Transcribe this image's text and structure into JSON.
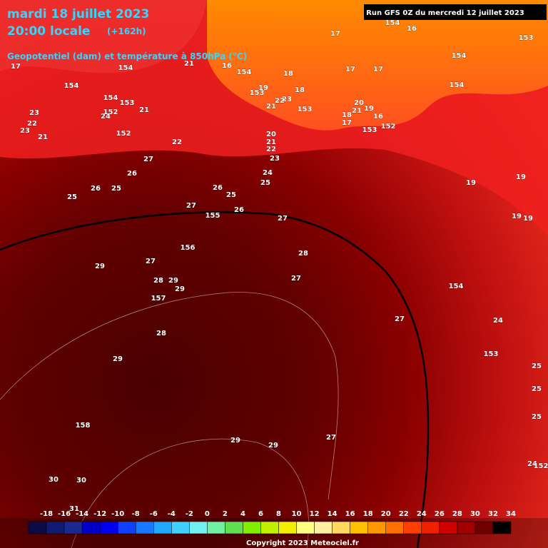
{
  "header": {
    "date": "mardi 18 juillet 2023",
    "time": "20:00 locale",
    "lead": "(+162h)",
    "field": "Geopotentiel (dam) et température à 850hPa (°C)",
    "run": "Run GFS 0Z du mercredi 12 juillet 2023"
  },
  "map_labels": [
    17,
    154,
    23,
    22,
    23,
    21,
    154,
    152,
    153,
    21,
    24,
    152,
    22,
    27,
    26,
    26,
    25,
    25,
    27,
    155,
    26,
    25,
    26,
    156,
    27,
    28,
    27,
    29,
    27,
    28,
    29,
    29,
    157,
    28,
    29,
    158,
    30,
    30,
    31,
    29,
    29,
    27,
    27,
    154,
    24,
    153,
    25,
    25,
    25,
    24,
    152,
    19,
    19,
    19,
    19,
    154,
    154,
    153,
    17,
    154,
    16,
    17,
    17,
    18,
    153,
    19,
    16,
    154,
    21,
    154,
    23,
    22,
    18,
    153,
    21,
    20,
    21,
    22,
    23,
    24,
    25,
    18,
    17,
    20,
    21,
    153,
    152,
    19,
    16
  ],
  "legend": {
    "labels": [
      -18,
      -16,
      -14,
      -12,
      -10,
      -8,
      -6,
      -4,
      -2,
      0,
      2,
      4,
      6,
      8,
      10,
      12,
      14,
      16,
      18,
      20,
      22,
      24,
      26,
      28,
      30,
      32,
      34
    ],
    "colors": [
      "#0b0b45",
      "#101a70",
      "#1a2a90",
      "#0000c8",
      "#0000f0",
      "#1040ff",
      "#1878ff",
      "#20a8ff",
      "#40d0ff",
      "#70f0f0",
      "#70f0a0",
      "#60e050",
      "#80f000",
      "#c0f000",
      "#f0f000",
      "#ffff80",
      "#fff0a0",
      "#ffd860",
      "#ffc000",
      "#ff9800",
      "#ff7000",
      "#ff4000",
      "#f02000",
      "#d00000",
      "#a00000",
      "#700000",
      "#000000"
    ]
  },
  "copyright": "Copyright 2023 Meteociel.fr"
}
